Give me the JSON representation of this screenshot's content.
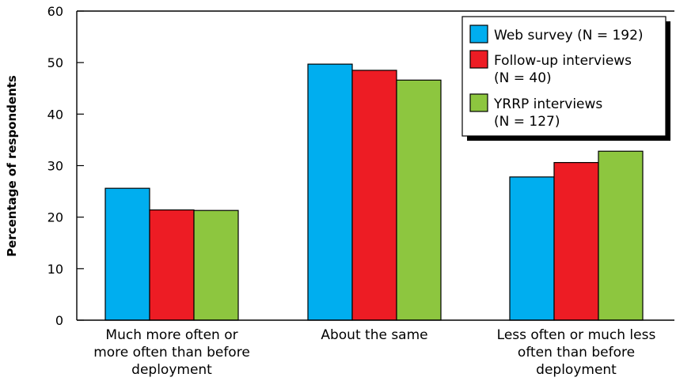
{
  "chart_data": {
    "type": "bar",
    "ylabel": "Percentage of respondents",
    "xlabel": "",
    "ylim": [
      0,
      60
    ],
    "yticks": [
      "0",
      "10",
      "20",
      "30",
      "40",
      "50",
      "60"
    ],
    "grid": false,
    "legend_position": "top-right",
    "categories": [
      [
        "Much more often or",
        "more often than before",
        "deployment"
      ],
      [
        "About the same"
      ],
      [
        "Less often or much less",
        "often than before",
        "deployment"
      ]
    ],
    "series": [
      {
        "name": [
          "Web survey (N = 192)"
        ],
        "color": "#00AEEF",
        "values": [
          25.6,
          49.7,
          27.8
        ]
      },
      {
        "name": [
          "Follow-up interviews",
          "(N = 40)"
        ],
        "color": "#ED1C24",
        "values": [
          21.4,
          48.5,
          30.6
        ]
      },
      {
        "name": [
          "YRRP interviews",
          "(N = 127)"
        ],
        "color": "#8DC63F",
        "values": [
          21.3,
          46.6,
          32.8
        ]
      }
    ]
  }
}
